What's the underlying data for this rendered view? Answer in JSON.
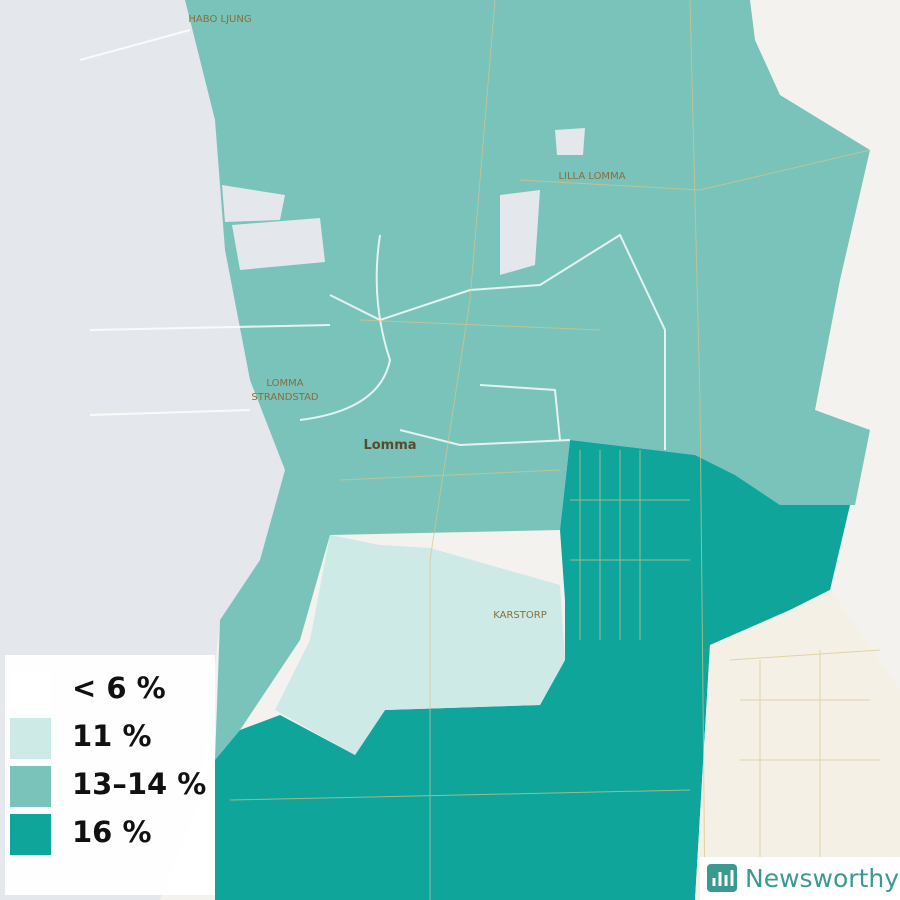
{
  "map": {
    "places": [
      {
        "lines": [
          "HABO LJUNG"
        ]
      },
      {
        "lines": [
          "LILLA LOMMA"
        ]
      },
      {
        "lines": [
          "LOMMA",
          "STRANDSTAD"
        ]
      },
      {
        "lines": [
          "Lomma"
        ]
      },
      {
        "lines": [
          "KARSTORP"
        ]
      }
    ],
    "legend": {
      "items": [
        {
          "label": "< 6 %",
          "color": "#ffffff"
        },
        {
          "label": "11 %",
          "color": "#cdeae6"
        },
        {
          "label": "13–14 %",
          "color": "#79c3ba"
        },
        {
          "label": "16 %",
          "color": "#0fa59b"
        }
      ]
    },
    "brand": "Newsworthy"
  }
}
